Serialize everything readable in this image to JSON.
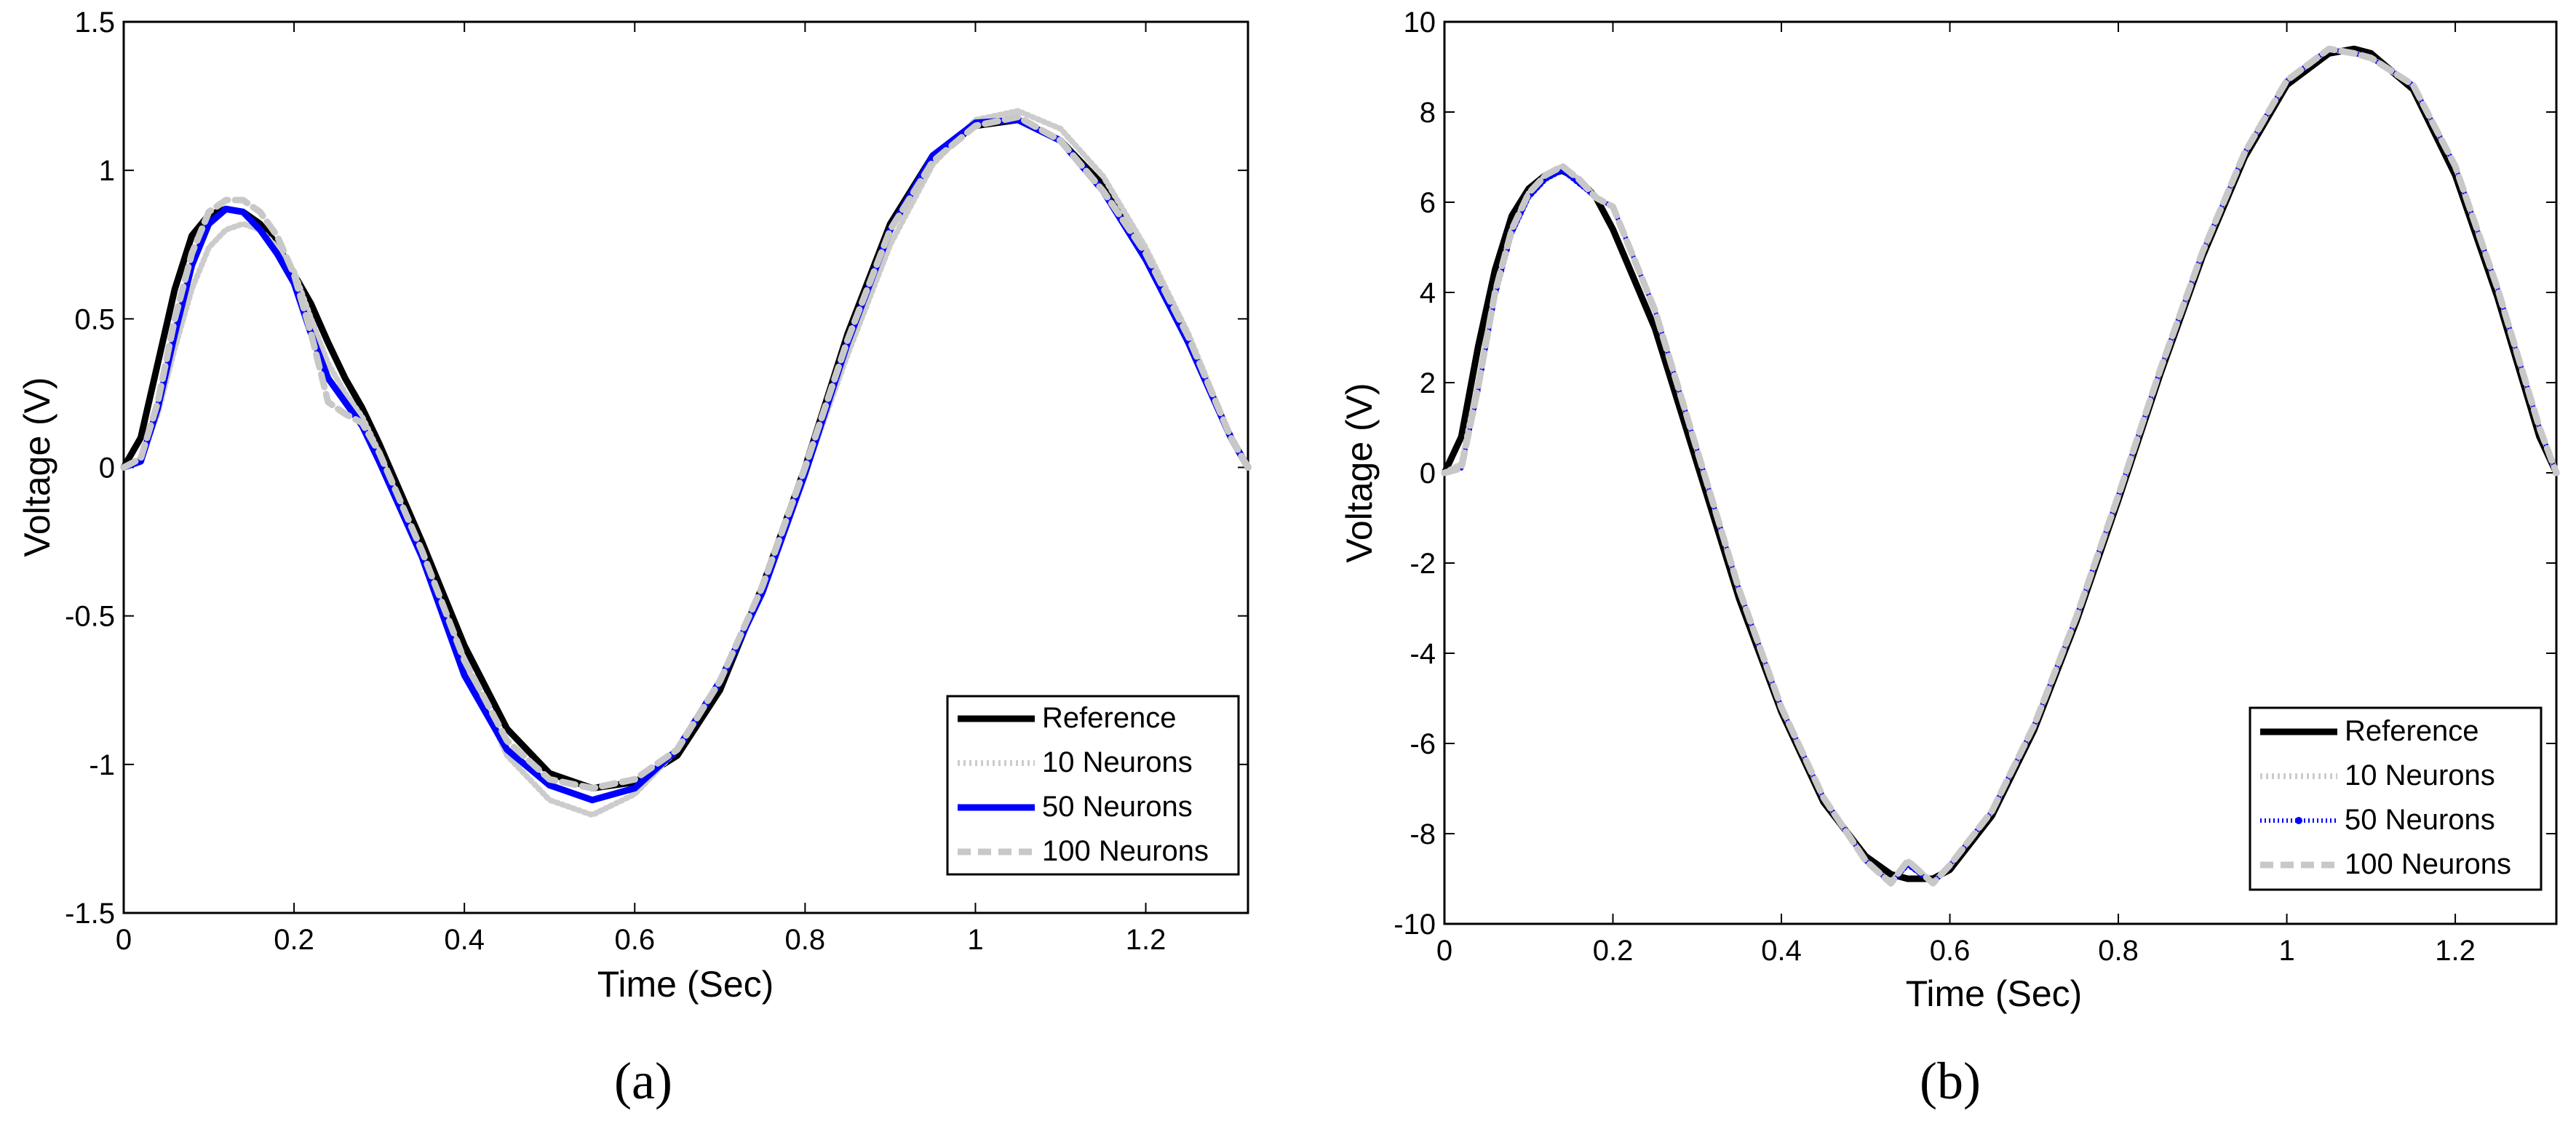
{
  "chart_data": [
    {
      "panel_label": "(a)",
      "type": "line",
      "xlabel": "Time (Sec)",
      "ylabel": "Voltage (V)",
      "xlim": [
        0,
        1.32
      ],
      "ylim": [
        -1.5,
        1.5
      ],
      "xticks": [
        0,
        0.2,
        0.4,
        0.6,
        0.8,
        1,
        1.2
      ],
      "xtick_labels": [
        "0",
        "0.2",
        "0.4",
        "0.6",
        "0.8",
        "1",
        "1.2"
      ],
      "yticks": [
        -1.5,
        -1,
        -0.5,
        0,
        0.5,
        1,
        1.5
      ],
      "ytick_labels": [
        "-1.5",
        "-1",
        "-0.5",
        "0",
        "0.5",
        "1",
        "1.5"
      ],
      "legend_position": "bottom-right",
      "series": [
        {
          "name": "Reference",
          "color": "#000000",
          "style": "solid",
          "x": [
            0,
            0.02,
            0.04,
            0.06,
            0.08,
            0.1,
            0.12,
            0.14,
            0.16,
            0.18,
            0.2,
            0.22,
            0.24,
            0.26,
            0.28,
            0.3,
            0.35,
            0.4,
            0.45,
            0.5,
            0.55,
            0.6,
            0.65,
            0.7,
            0.75,
            0.8,
            0.85,
            0.9,
            0.95,
            1.0,
            1.05,
            1.1,
            1.15,
            1.2,
            1.25,
            1.3,
            1.32
          ],
          "y": [
            0,
            0.1,
            0.35,
            0.6,
            0.78,
            0.85,
            0.87,
            0.86,
            0.82,
            0.75,
            0.65,
            0.55,
            0.42,
            0.3,
            0.2,
            0.08,
            -0.25,
            -0.6,
            -0.88,
            -1.03,
            -1.08,
            -1.06,
            -0.97,
            -0.75,
            -0.4,
            0.0,
            0.45,
            0.82,
            1.05,
            1.15,
            1.17,
            1.1,
            0.95,
            0.72,
            0.42,
            0.1,
            0
          ]
        },
        {
          "name": "10 Neurons",
          "color": "#cccccc",
          "style": "dotted",
          "x": [
            0,
            0.02,
            0.04,
            0.06,
            0.08,
            0.1,
            0.12,
            0.14,
            0.16,
            0.18,
            0.2,
            0.22,
            0.24,
            0.26,
            0.28,
            0.3,
            0.35,
            0.4,
            0.45,
            0.5,
            0.55,
            0.6,
            0.65,
            0.7,
            0.75,
            0.8,
            0.85,
            0.9,
            0.95,
            1.0,
            1.05,
            1.1,
            1.15,
            1.2,
            1.25,
            1.3,
            1.32
          ],
          "y": [
            0,
            0.03,
            0.18,
            0.4,
            0.6,
            0.74,
            0.8,
            0.82,
            0.8,
            0.74,
            0.66,
            0.5,
            0.35,
            0.25,
            0.17,
            0.05,
            -0.3,
            -0.65,
            -0.97,
            -1.12,
            -1.17,
            -1.1,
            -0.95,
            -0.72,
            -0.42,
            -0.02,
            0.38,
            0.75,
            1.02,
            1.17,
            1.2,
            1.14,
            0.98,
            0.74,
            0.45,
            0.1,
            0
          ]
        },
        {
          "name": "50 Neurons",
          "color": "#0000ff",
          "style": "solid",
          "x": [
            0,
            0.02,
            0.04,
            0.06,
            0.08,
            0.1,
            0.12,
            0.14,
            0.16,
            0.18,
            0.2,
            0.22,
            0.24,
            0.26,
            0.28,
            0.3,
            0.35,
            0.4,
            0.45,
            0.5,
            0.55,
            0.6,
            0.65,
            0.7,
            0.75,
            0.8,
            0.85,
            0.9,
            0.95,
            1.0,
            1.05,
            1.1,
            1.15,
            1.2,
            1.25,
            1.3,
            1.32
          ],
          "y": [
            0,
            0.02,
            0.2,
            0.45,
            0.68,
            0.82,
            0.87,
            0.86,
            0.8,
            0.72,
            0.62,
            0.45,
            0.3,
            0.22,
            0.14,
            0.02,
            -0.3,
            -0.7,
            -0.95,
            -1.07,
            -1.12,
            -1.08,
            -0.95,
            -0.72,
            -0.42,
            -0.02,
            0.42,
            0.8,
            1.05,
            1.16,
            1.17,
            1.1,
            0.93,
            0.7,
            0.42,
            0.1,
            0
          ]
        },
        {
          "name": "100 Neurons",
          "color": "#c8c8c8",
          "style": "dashed",
          "x": [
            0,
            0.02,
            0.04,
            0.06,
            0.08,
            0.1,
            0.12,
            0.14,
            0.16,
            0.18,
            0.2,
            0.22,
            0.24,
            0.26,
            0.28,
            0.3,
            0.35,
            0.4,
            0.45,
            0.5,
            0.55,
            0.6,
            0.65,
            0.7,
            0.75,
            0.8,
            0.85,
            0.9,
            0.95,
            1.0,
            1.05,
            1.1,
            1.15,
            1.2,
            1.25,
            1.3,
            1.32
          ],
          "y": [
            0,
            0.03,
            0.22,
            0.5,
            0.72,
            0.86,
            0.9,
            0.9,
            0.86,
            0.78,
            0.65,
            0.45,
            0.22,
            0.18,
            0.15,
            0.05,
            -0.28,
            -0.65,
            -0.92,
            -1.05,
            -1.08,
            -1.05,
            -0.95,
            -0.72,
            -0.4,
            0.0,
            0.43,
            0.8,
            1.03,
            1.15,
            1.18,
            1.1,
            0.93,
            0.72,
            0.44,
            0.1,
            0
          ]
        }
      ],
      "legend": [
        "Reference",
        "10 Neurons",
        "50 Neurons",
        "100 Neurons"
      ]
    },
    {
      "panel_label": "(b)",
      "type": "line",
      "xlabel": "Time (Sec)",
      "ylabel": "Voltage (V)",
      "xlim": [
        0,
        1.32
      ],
      "ylim": [
        -10,
        10
      ],
      "xticks": [
        0,
        0.2,
        0.4,
        0.6,
        0.8,
        1,
        1.2
      ],
      "xtick_labels": [
        "0",
        "0.2",
        "0.4",
        "0.6",
        "0.8",
        "1",
        "1.2"
      ],
      "yticks": [
        -10,
        -8,
        -6,
        -4,
        -2,
        0,
        2,
        4,
        6,
        8,
        10
      ],
      "ytick_labels": [
        "-10",
        "-8",
        "-6",
        "-4",
        "-2",
        "0",
        "2",
        "4",
        "6",
        "8",
        "10"
      ],
      "legend_position": "bottom-right",
      "series": [
        {
          "name": "Reference",
          "color": "#000000",
          "style": "solid",
          "x": [
            0,
            0.02,
            0.04,
            0.06,
            0.08,
            0.1,
            0.12,
            0.14,
            0.16,
            0.18,
            0.2,
            0.25,
            0.3,
            0.35,
            0.4,
            0.45,
            0.5,
            0.53,
            0.55,
            0.58,
            0.6,
            0.65,
            0.7,
            0.75,
            0.8,
            0.85,
            0.9,
            0.95,
            1.0,
            1.05,
            1.08,
            1.1,
            1.15,
            1.2,
            1.25,
            1.3,
            1.32
          ],
          "y": [
            0,
            0.8,
            2.8,
            4.5,
            5.7,
            6.3,
            6.6,
            6.7,
            6.5,
            6.1,
            5.4,
            3.2,
            0.2,
            -2.8,
            -5.3,
            -7.3,
            -8.5,
            -8.9,
            -9.0,
            -9.0,
            -8.8,
            -7.6,
            -5.7,
            -3.3,
            -0.6,
            2.2,
            4.8,
            7.0,
            8.6,
            9.3,
            9.4,
            9.3,
            8.5,
            6.6,
            3.9,
            0.8,
            0
          ]
        },
        {
          "name": "10 Neurons",
          "color": "#cccccc",
          "style": "dotted",
          "x": [
            0,
            0.02,
            0.04,
            0.06,
            0.08,
            0.1,
            0.12,
            0.14,
            0.16,
            0.18,
            0.2,
            0.25,
            0.3,
            0.35,
            0.4,
            0.45,
            0.5,
            0.53,
            0.55,
            0.58,
            0.6,
            0.65,
            0.7,
            0.75,
            0.8,
            0.85,
            0.9,
            0.95,
            1.0,
            1.05,
            1.08,
            1.1,
            1.15,
            1.2,
            1.25,
            1.3,
            1.32
          ],
          "y": [
            0,
            0.2,
            2.0,
            4.0,
            5.4,
            6.2,
            6.6,
            6.8,
            6.5,
            6.1,
            5.9,
            3.6,
            0.5,
            -2.6,
            -5.2,
            -7.2,
            -8.6,
            -9.1,
            -8.6,
            -9.1,
            -8.7,
            -7.5,
            -5.6,
            -3.2,
            -0.5,
            2.3,
            4.9,
            7.1,
            8.7,
            9.4,
            9.3,
            9.2,
            8.6,
            6.8,
            4.1,
            1.0,
            0
          ]
        },
        {
          "name": "50 Neurons",
          "color": "#0000ff",
          "style": "dotted-marker",
          "x": [
            0,
            0.02,
            0.04,
            0.06,
            0.08,
            0.1,
            0.12,
            0.14,
            0.16,
            0.18,
            0.2,
            0.25,
            0.3,
            0.35,
            0.4,
            0.45,
            0.5,
            0.53,
            0.55,
            0.58,
            0.6,
            0.65,
            0.7,
            0.75,
            0.8,
            0.85,
            0.9,
            0.95,
            1.0,
            1.05,
            1.08,
            1.1,
            1.15,
            1.2,
            1.25,
            1.3,
            1.32
          ],
          "y": [
            0,
            0.1,
            1.8,
            3.9,
            5.3,
            6.1,
            6.5,
            6.7,
            6.4,
            6.1,
            5.9,
            3.6,
            0.5,
            -2.6,
            -5.2,
            -7.2,
            -8.6,
            -9.1,
            -8.7,
            -9.1,
            -8.7,
            -7.5,
            -5.6,
            -3.2,
            -0.5,
            2.3,
            4.9,
            7.1,
            8.7,
            9.4,
            9.3,
            9.2,
            8.6,
            6.8,
            4.1,
            1.0,
            0
          ]
        },
        {
          "name": "100 Neurons",
          "color": "#c8c8c8",
          "style": "dashed",
          "x": [
            0,
            0.02,
            0.04,
            0.06,
            0.08,
            0.1,
            0.12,
            0.14,
            0.16,
            0.18,
            0.2,
            0.25,
            0.3,
            0.35,
            0.4,
            0.45,
            0.5,
            0.53,
            0.55,
            0.58,
            0.6,
            0.65,
            0.7,
            0.75,
            0.8,
            0.85,
            0.9,
            0.95,
            1.0,
            1.05,
            1.08,
            1.1,
            1.15,
            1.2,
            1.25,
            1.3,
            1.32
          ],
          "y": [
            0,
            0.1,
            1.9,
            4.0,
            5.4,
            6.2,
            6.6,
            6.8,
            6.5,
            6.1,
            5.9,
            3.6,
            0.5,
            -2.6,
            -5.2,
            -7.2,
            -8.6,
            -9.1,
            -8.6,
            -9.1,
            -8.7,
            -7.5,
            -5.6,
            -3.2,
            -0.5,
            2.3,
            4.9,
            7.1,
            8.7,
            9.4,
            9.3,
            9.2,
            8.6,
            6.8,
            4.1,
            1.0,
            0
          ]
        }
      ],
      "legend": [
        "Reference",
        "10 Neurons",
        "50 Neurons",
        "100 Neurons"
      ]
    }
  ]
}
